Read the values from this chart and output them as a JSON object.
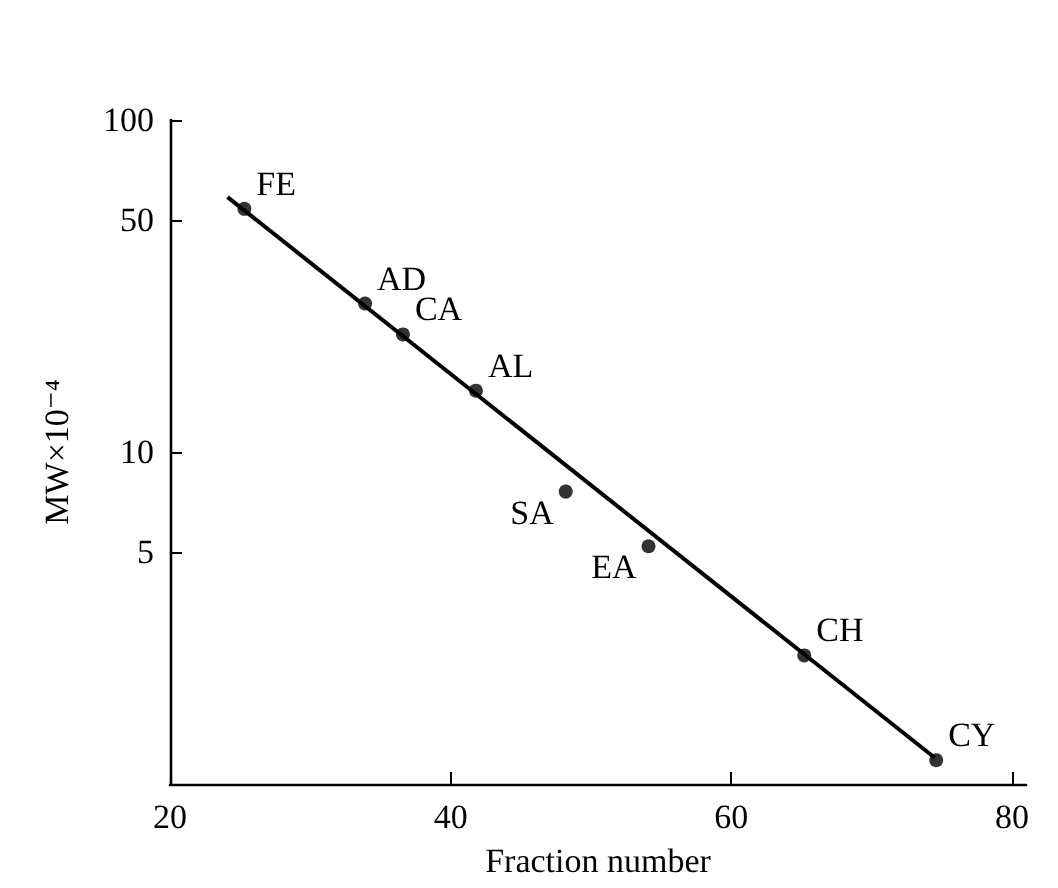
{
  "chart_data": {
    "type": "scatter",
    "xlabel": "Fraction number",
    "ylabel": "MW×10⁻⁴",
    "x": [
      25.3,
      33.9,
      36.6,
      41.8,
      48.2,
      54.1,
      65.2,
      74.6
    ],
    "series": [
      {
        "color": "#000000",
        "values": [
          54,
          28,
          22.6,
          15.3,
          7.6,
          5.2,
          2.44,
          1.18
        ]
      },
      {
        "type": "line",
        "marker": "none",
        "color": "#000000",
        "x": [
          24.1,
          74.5
        ],
        "values": [
          58.6,
          1.2
        ]
      }
    ],
    "annotations": [
      {
        "text": "FE",
        "x": 25.3,
        "y": 54
      },
      {
        "text": "AD",
        "x": 33.9,
        "y": 28
      },
      {
        "text": "CA",
        "x": 36.6,
        "y": 22.6
      },
      {
        "text": "AL",
        "x": 41.8,
        "y": 15.3
      },
      {
        "text": "SA",
        "x": 48.2,
        "y": 7.6
      },
      {
        "text": "EA",
        "x": 54.1,
        "y": 5.2
      },
      {
        "text": "CH",
        "x": 65.2,
        "y": 2.44
      },
      {
        "text": "CY",
        "x": 74.6,
        "y": 1.18
      }
    ],
    "xlim": [
      20,
      81
    ],
    "xticks": [
      20,
      40,
      60,
      80
    ],
    "ylim": [
      1,
      100
    ],
    "yticks": [
      5,
      10,
      50,
      100
    ],
    "log": "y",
    "grid": false,
    "marker": "circle",
    "line_style": "solid"
  }
}
